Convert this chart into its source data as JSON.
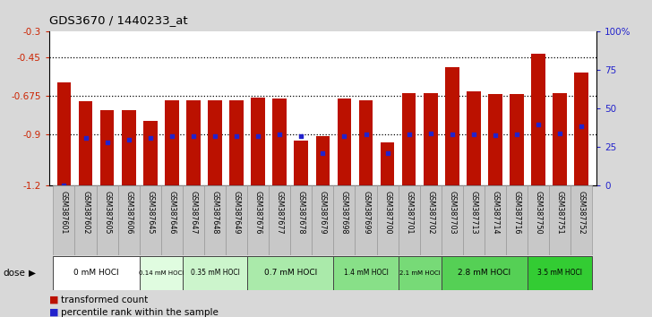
{
  "title": "GDS3670 / 1440233_at",
  "samples": [
    "GSM387601",
    "GSM387602",
    "GSM387605",
    "GSM387606",
    "GSM387645",
    "GSM387646",
    "GSM387647",
    "GSM387648",
    "GSM387649",
    "GSM387676",
    "GSM387677",
    "GSM387678",
    "GSM387679",
    "GSM387698",
    "GSM387699",
    "GSM387700",
    "GSM387701",
    "GSM387702",
    "GSM387703",
    "GSM387713",
    "GSM387714",
    "GSM387716",
    "GSM387750",
    "GSM387751",
    "GSM387752"
  ],
  "bar_values": [
    -0.595,
    -0.705,
    -0.76,
    -0.76,
    -0.82,
    -0.7,
    -0.7,
    -0.7,
    -0.7,
    -0.685,
    -0.69,
    -0.94,
    -0.91,
    -0.69,
    -0.7,
    -0.95,
    -0.66,
    -0.66,
    -0.505,
    -0.65,
    -0.665,
    -0.665,
    -0.43,
    -0.66,
    -0.54
  ],
  "percentile_values": [
    -1.2,
    -0.92,
    -0.95,
    -0.93,
    -0.92,
    -0.91,
    -0.91,
    -0.91,
    -0.91,
    -0.91,
    -0.9,
    -0.91,
    -1.01,
    -0.91,
    -0.9,
    -1.01,
    -0.9,
    -0.895,
    -0.9,
    -0.9,
    -0.905,
    -0.9,
    -0.845,
    -0.895,
    -0.855
  ],
  "groups": [
    {
      "label": "0 mM HOCl",
      "start": 0,
      "end": 4,
      "color": "#ffffff"
    },
    {
      "label": "0.14 mM HOCl",
      "start": 4,
      "end": 6,
      "color": "#ddfcdd"
    },
    {
      "label": "0.35 mM HOCl",
      "start": 6,
      "end": 9,
      "color": "#ccf8cc"
    },
    {
      "label": "0.7 mM HOCl",
      "start": 9,
      "end": 13,
      "color": "#aaf0aa"
    },
    {
      "label": "1.4 mM HOCl",
      "start": 13,
      "end": 16,
      "color": "#88e888"
    },
    {
      "label": "2.1 mM HOCl",
      "start": 16,
      "end": 18,
      "color": "#77e077"
    },
    {
      "label": "2.8 mM HOCl",
      "start": 18,
      "end": 22,
      "color": "#55d855"
    },
    {
      "label": "3.5 mM HOCl",
      "start": 22,
      "end": 25,
      "color": "#33cc33"
    }
  ],
  "ylim": [
    -1.2,
    -0.3
  ],
  "yticks_left": [
    -0.3,
    -0.45,
    -0.675,
    -0.9,
    -1.2
  ],
  "right_ticks_pct": [
    0,
    25,
    50,
    75,
    100
  ],
  "bar_color": "#bb1100",
  "dot_color": "#2222cc",
  "bg_color": "#d8d8d8",
  "plot_bg": "#ffffff",
  "label_bg": "#c8c8c8",
  "left_tick_color": "#cc2200",
  "right_tick_color": "#2222cc",
  "dose_bar_color": "#222222"
}
